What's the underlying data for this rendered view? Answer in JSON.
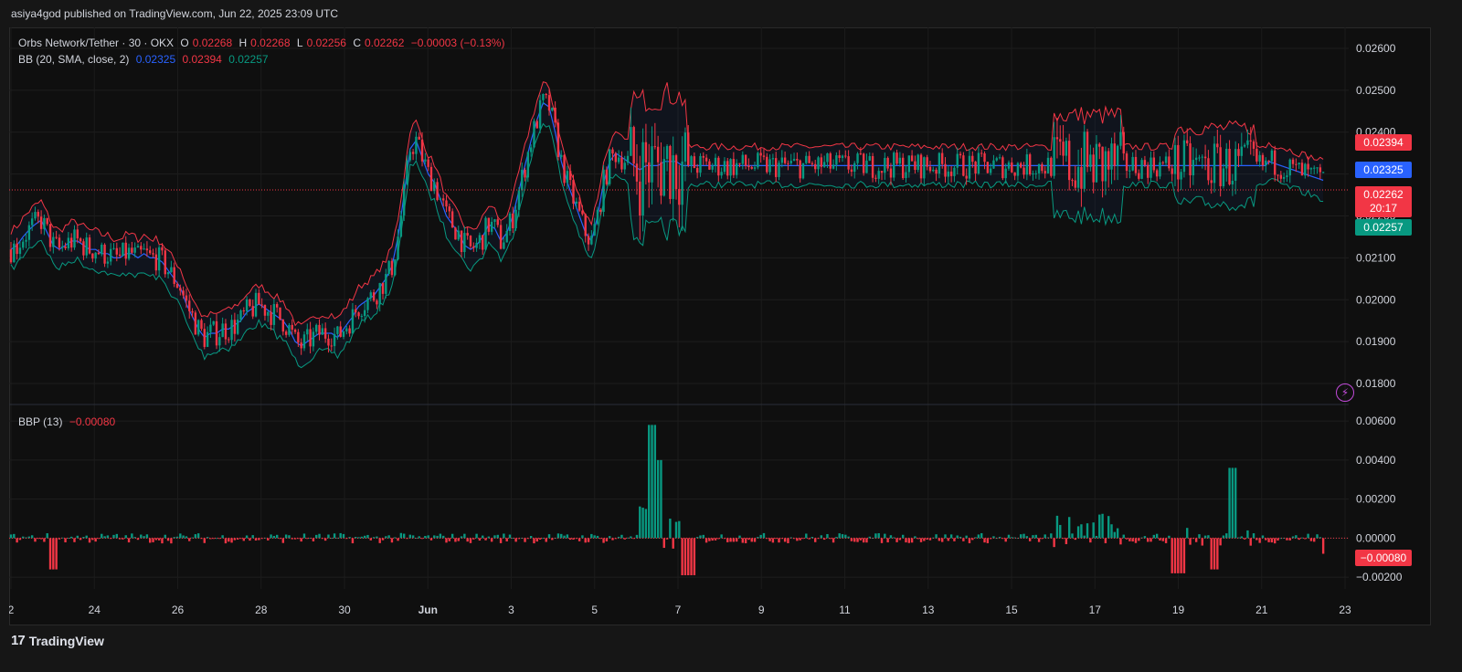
{
  "header": {
    "publisher": "asiya4god published on TradingView.com, Jun 22, 2025 23:09 UTC"
  },
  "legend": {
    "symbol": "Orbs Network/Tether · 30 · OKX",
    "open_label": "O",
    "open": "0.02268",
    "high_label": "H",
    "high": "0.02268",
    "low_label": "L",
    "low": "0.02256",
    "close_label": "C",
    "close": "0.02262",
    "change": "−0.00003 (−0.13%)",
    "bb_label": "BB (20, SMA, close, 2)",
    "bb_basis": "0.02325",
    "bb_upper": "0.02394",
    "bb_lower": "0.02257",
    "bbp_label": "BBP (13)",
    "bbp_value": "−0.00080"
  },
  "price_tags": {
    "upper": "0.02394",
    "basis": "0.02325",
    "last": "0.02262",
    "countdown": "20:17",
    "lower": "0.02257",
    "bbp": "−0.00080"
  },
  "colors": {
    "up": "#089981",
    "down": "#f23645",
    "basis": "#2962ff",
    "upper_band": "#f23645",
    "lower_band": "#089981"
  },
  "footer": {
    "brand": "TradingView"
  },
  "chart_data": [
    {
      "type": "line",
      "title": "Orbs Network/Tether · 30 · OKX",
      "ylim": [
        0.0175,
        0.0265
      ],
      "yticks": [
        "0.02600",
        "0.02500",
        "0.02400",
        "0.02300",
        "0.02200",
        "0.02100",
        "0.02000",
        "0.01900",
        "0.01800"
      ],
      "xticks": [
        "2",
        "24",
        "26",
        "28",
        "30",
        "Jun",
        "3",
        "5",
        "7",
        "9",
        "11",
        "13",
        "15",
        "17",
        "19",
        "21",
        "23"
      ],
      "last_price": 0.02262,
      "x_days": [
        0,
        0.5,
        1,
        1.3,
        1.6,
        2,
        2.5,
        3,
        3.5,
        4,
        4.5,
        5,
        5.5,
        6,
        6.5,
        7,
        7.5,
        8,
        8.5,
        9,
        9.5,
        10,
        10.5,
        11,
        11.5,
        12,
        12.5,
        13,
        13.5,
        14,
        14.5,
        15,
        15.5,
        16,
        16.5,
        17,
        17.5,
        18,
        18.5,
        19,
        19.5,
        20,
        20.5,
        21,
        21.5,
        22,
        22.5,
        23,
        23.5,
        24,
        24.5,
        25,
        25.5,
        26,
        26.5,
        27,
        27.5,
        28,
        28.3,
        28.6,
        29,
        29.5,
        30,
        30.5,
        31,
        31.5,
        32,
        32.5,
        33,
        33.5,
        34,
        34.5,
        35,
        35.5,
        36,
        36.5,
        37,
        37.5,
        38,
        38.5,
        39,
        39.5,
        40,
        40.5,
        41,
        41.5,
        42,
        42.5,
        43,
        43.5,
        44,
        44.5,
        45,
        45.5,
        46,
        46.5,
        47,
        47.5,
        48,
        48.5,
        49,
        49.5,
        50,
        50.5,
        51,
        51.5,
        52,
        52.5,
        53,
        53.5,
        54,
        54.5,
        55,
        55.5,
        56,
        56.5,
        57,
        57.5,
        58,
        58.5,
        59,
        59.5,
        60,
        60.5,
        61,
        61.5,
        62,
        62.5,
        63,
        63.5,
        64,
        64.5,
        65,
        65.5,
        66,
        66.5,
        67,
        67.5,
        68,
        68.5,
        69,
        69.5,
        70,
        70.5,
        71,
        71.5,
        72,
        72.5,
        73,
        73.5,
        74,
        74.5,
        75,
        75.5,
        76,
        76.5,
        77,
        77.5,
        78,
        78.5,
        79,
        79.5,
        80,
        80.5,
        81,
        81.5,
        82,
        82.5,
        83,
        83.5,
        84,
        84.5,
        85,
        85.5,
        86,
        86.5,
        87,
        87.5,
        88,
        88.5,
        89,
        89.5,
        90,
        90.5,
        91,
        91.5,
        92,
        92.5,
        93,
        93.5,
        94,
        94.5,
        95,
        95.5,
        96,
        96.5,
        97,
        97.5,
        98,
        98.5,
        99,
        99.5,
        100,
        100.5,
        101,
        101.5,
        102,
        102.5,
        103,
        103.5,
        104,
        104.5,
        105,
        105.5,
        106,
        106.5,
        107,
        107.5,
        108,
        108.5,
        109,
        109.5,
        110
      ],
      "series": [
        {
          "name": "0.02325",
          "color": "#2962ff",
          "values": [
            0.0212,
            0.0213,
            0.0215,
            0.0216,
            0.0217,
            0.0218,
            0.0219,
            0.0216,
            0.0213,
            0.0212,
            0.0213,
            0.0214,
            0.0214,
            0.0213,
            0.0212,
            0.0212,
            0.0211,
            0.0211,
            0.021,
            0.021,
            0.0211,
            0.0211,
            0.021,
            0.0211,
            0.021,
            0.021,
            0.0209,
            0.0207,
            0.0205,
            0.0203,
            0.0199,
            0.0196,
            0.0193,
            0.0191,
            0.0192,
            0.0192,
            0.0193,
            0.0193,
            0.0194,
            0.0195,
            0.0197,
            0.0198,
            0.0199,
            0.0198,
            0.0197,
            0.0196,
            0.0195,
            0.0193,
            0.019,
            0.0189,
            0.019,
            0.0191,
            0.0192,
            0.0192,
            0.0192,
            0.0191,
            0.0193,
            0.0195,
            0.0196,
            0.0198,
            0.0199,
            0.02,
            0.0201,
            0.0203,
            0.0205,
            0.0208,
            0.0215,
            0.0225,
            0.0236,
            0.0238,
            0.0234,
            0.023,
            0.0228,
            0.0224,
            0.022,
            0.0218,
            0.0216,
            0.0213,
            0.0212,
            0.0213,
            0.0215,
            0.0218,
            0.0217,
            0.0214,
            0.0216,
            0.022,
            0.0226,
            0.0232,
            0.0238,
            0.0243,
            0.0247,
            0.0246,
            0.024,
            0.0233,
            0.0228,
            0.0224,
            0.022,
            0.0216,
            0.0214,
            0.022,
            0.0228,
            0.0233,
            0.0235,
            0.0234,
            0.0233,
            0.0232,
            0.0231,
            0.0232,
            0.0232,
            0.0232,
            0.0233,
            0.0233,
            0.0233,
            0.0232,
            0.0232,
            0.0232,
            0.0232,
            0.0232,
            0.0232,
            0.0232,
            0.0232,
            0.0232,
            0.0232,
            0.0232,
            0.0232,
            0.0232,
            0.0232,
            0.0232,
            0.0232,
            0.0232,
            0.0232,
            0.0232,
            0.0232,
            0.0232,
            0.0232,
            0.0232,
            0.0232,
            0.0232,
            0.0232,
            0.0232,
            0.0232,
            0.0232,
            0.0232,
            0.0232,
            0.0232,
            0.0232,
            0.0232,
            0.0232,
            0.0232,
            0.0232,
            0.0232,
            0.0232,
            0.0232,
            0.0232,
            0.0232,
            0.0232,
            0.0232,
            0.0232,
            0.0232,
            0.0232,
            0.0232,
            0.0232,
            0.0232,
            0.0232,
            0.0232,
            0.0232,
            0.0232,
            0.0232,
            0.0232,
            0.0232,
            0.0232,
            0.0232,
            0.0232,
            0.0232,
            0.0232,
            0.0232,
            0.0232,
            0.0232,
            0.0232,
            0.0232,
            0.0232,
            0.0232,
            0.0232,
            0.0232,
            0.0232,
            0.0232,
            0.0232,
            0.0232,
            0.0232,
            0.0232,
            0.0232,
            0.0232,
            0.0232,
            0.0232,
            0.0232,
            0.0232,
            0.0232,
            0.0232,
            0.0232,
            0.0232,
            0.0232,
            0.0232,
            0.0232,
            0.0232,
            0.0232,
            0.0232,
            0.0232,
            0.0232,
            0.0232,
            0.0232,
            0.0232,
            0.0232
          ]
        }
      ]
    },
    {
      "type": "bar",
      "title": "BBP (13)",
      "ylim": [
        -0.0026,
        0.0068
      ],
      "yticks": [
        "0.00600",
        "0.00400",
        "0.00200",
        "0.00000",
        "−0.00200"
      ],
      "last_value": -0.0008
    }
  ]
}
